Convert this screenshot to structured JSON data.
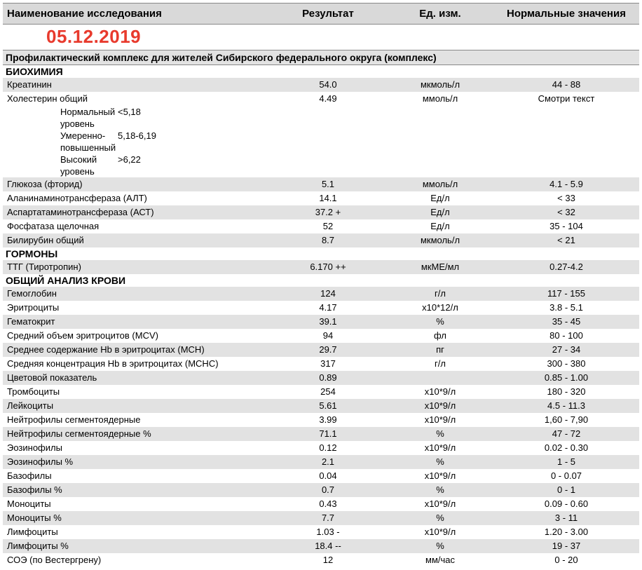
{
  "header": {
    "name": "Наименование исследования",
    "result": "Результат",
    "unit": "Ед. изм.",
    "norm": "Нормальные значения"
  },
  "date_stamp": {
    "text": "05.12.2019",
    "color": "#e83a2d"
  },
  "section_title": "Профилактический комплекс для жителей Сибирского федерального округа (комплекс)",
  "categories": [
    {
      "title": "БИОХИМИЯ",
      "rows": [
        {
          "name": "Креатинин",
          "result": "54.0",
          "unit": "мкмоль/л",
          "norm": "44 - 88"
        },
        {
          "name": "Холестерин общий",
          "result": "4.49",
          "unit": "ммоль/л",
          "norm": "Смотри текст",
          "subrows": [
            {
              "label": "Нормальный уровень",
              "value": "<5,18"
            },
            {
              "label": "Умеренно-повышенный",
              "value": "5,18-6,19"
            },
            {
              "label": "Высокий уровень",
              "value": ">6,22"
            }
          ]
        },
        {
          "name": "Глюкоза (фторид)",
          "result": "5.1",
          "unit": "ммоль/л",
          "norm": "4.1 - 5.9"
        },
        {
          "name": "Аланинаминотрансфераза (АЛТ)",
          "result": "14.1",
          "unit": "Ед/л",
          "norm": "< 33"
        },
        {
          "name": "Аспартатаминотрансфераза (АСТ)",
          "result": "37.2 +",
          "unit": "Ед/л",
          "norm": "< 32"
        },
        {
          "name": "Фосфатаза щелочная",
          "result": "52",
          "unit": "Ед/л",
          "norm": "35 - 104"
        },
        {
          "name": "Билирубин общий",
          "result": "8.7",
          "unit": "мкмоль/л",
          "norm": "< 21"
        }
      ]
    },
    {
      "title": "ГОРМОНЫ",
      "rows": [
        {
          "name": "ТТГ (Тиротропин)",
          "result": "6.170 ++",
          "unit": "мкМЕ/мл",
          "norm": "0.27-4.2"
        }
      ]
    },
    {
      "title": "ОБЩИЙ АНАЛИЗ КРОВИ",
      "rows": [
        {
          "name": "Гемоглобин",
          "result": "124",
          "unit": "г/л",
          "norm": "117 - 155"
        },
        {
          "name": "Эритроциты",
          "result": "4.17",
          "unit": "х10*12/л",
          "norm": "3.8 - 5.1"
        },
        {
          "name": "Гематокрит",
          "result": "39.1",
          "unit": "%",
          "norm": "35 - 45"
        },
        {
          "name": "Средний объем эритроцитов (MCV)",
          "result": "94",
          "unit": "фл",
          "norm": "80 - 100"
        },
        {
          "name": "Среднее содержание Hb в эритроцитах (MCH)",
          "result": "29.7",
          "unit": "пг",
          "norm": "27 - 34"
        },
        {
          "name": "Средняя концентрация Hb в эритроцитах (MCHC)",
          "result": "317",
          "unit": "г/л",
          "norm": "300 - 380"
        },
        {
          "name": "Цветовой показатель",
          "result": "0.89",
          "unit": "",
          "norm": "0.85 - 1.00"
        },
        {
          "name": "Тромбоциты",
          "result": "254",
          "unit": "х10*9/л",
          "norm": "180 - 320"
        },
        {
          "name": "Лейкоциты",
          "result": "5.61",
          "unit": "х10*9/л",
          "norm": "4.5 - 11.3"
        },
        {
          "name": "Нейтрофилы сегментоядерные",
          "result": "3.99",
          "unit": "х10*9/л",
          "norm": "1,60 - 7,90"
        },
        {
          "name": "Нейтрофилы сегментоядерные %",
          "result": "71.1",
          "unit": "%",
          "norm": "47 - 72"
        },
        {
          "name": "Эозинофилы",
          "result": "0.12",
          "unit": "х10*9/л",
          "norm": "0.02 - 0.30"
        },
        {
          "name": "Эозинофилы %",
          "result": "2.1",
          "unit": "%",
          "norm": "1 - 5"
        },
        {
          "name": "Базофилы",
          "result": "0.04",
          "unit": "х10*9/л",
          "norm": "0 - 0.07"
        },
        {
          "name": "Базофилы %",
          "result": "0.7",
          "unit": "%",
          "norm": "0 - 1"
        },
        {
          "name": "Моноциты",
          "result": "0.43",
          "unit": "х10*9/л",
          "norm": "0.09 - 0.60"
        },
        {
          "name": "Моноциты %",
          "result": "7.7",
          "unit": "%",
          "norm": "3 - 11"
        },
        {
          "name": "Лимфоциты",
          "result": "1.03 -",
          "unit": "х10*9/л",
          "norm": "1.20 - 3.00"
        },
        {
          "name": "Лимфоциты %",
          "result": "18.4 --",
          "unit": "%",
          "norm": "19 - 37"
        },
        {
          "name": "СОЭ (по Вестергрену)",
          "result": "12",
          "unit": "мм/час",
          "norm": "0 - 20"
        }
      ]
    }
  ]
}
